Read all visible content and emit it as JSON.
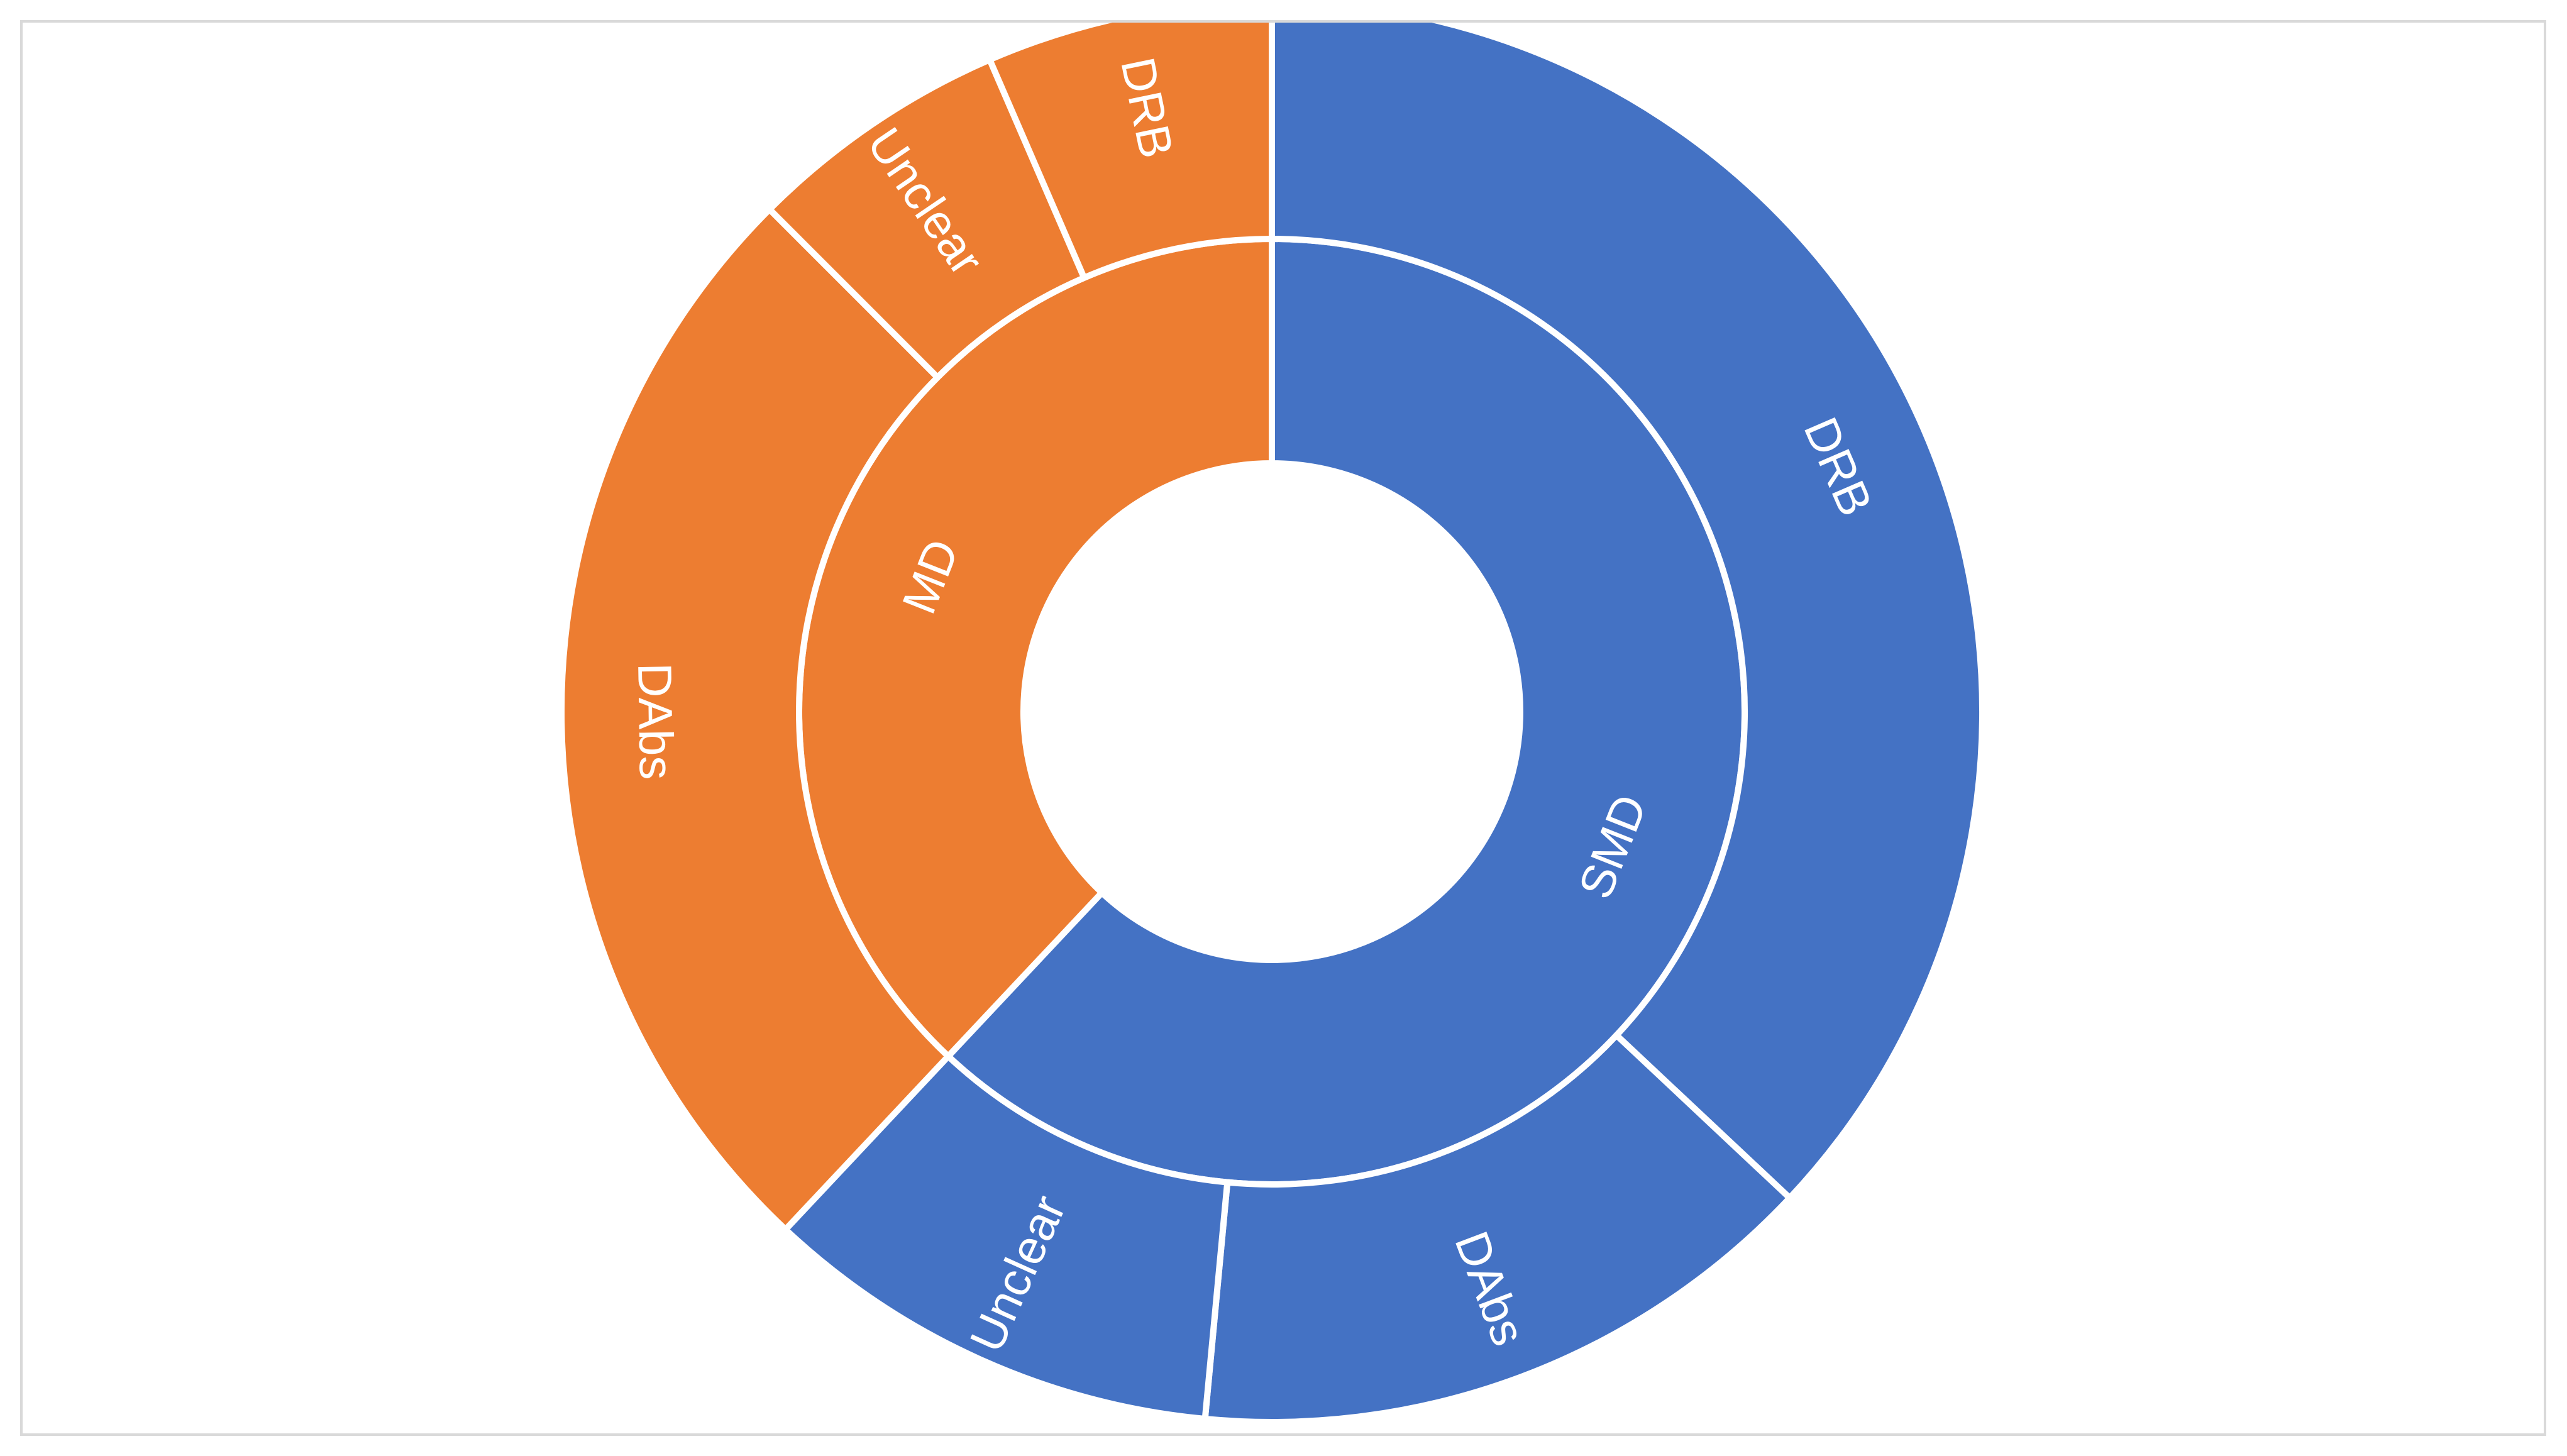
{
  "chart_data": {
    "type": "sunburst",
    "title": "",
    "inner_ring": [
      {
        "label": "SMD",
        "value": 62,
        "color": "#4472c4"
      },
      {
        "label": "MD",
        "value": 38,
        "color": "#ed7d31"
      }
    ],
    "outer_ring": [
      {
        "parent": "SMD",
        "label": "DRB",
        "value": 37,
        "color": "#4472c4"
      },
      {
        "parent": "SMD",
        "label": "DAbs",
        "value": 14.5,
        "color": "#4472c4"
      },
      {
        "parent": "SMD",
        "label": "Unclear",
        "value": 10.5,
        "color": "#4472c4"
      },
      {
        "parent": "MD",
        "label": "DAbs",
        "value": 25.5,
        "color": "#ed7d31"
      },
      {
        "parent": "MD",
        "label": "Unclear",
        "value": 6,
        "color": "#ed7d31"
      },
      {
        "parent": "MD",
        "label": "DRB",
        "value": 6.5,
        "color": "#ed7d31"
      }
    ],
    "start_angle_deg": 0,
    "direction": "clockwise",
    "legend": "none",
    "colors": {
      "SMD": "#4472c4",
      "MD": "#ed7d31",
      "separator": "#ffffff"
    }
  }
}
